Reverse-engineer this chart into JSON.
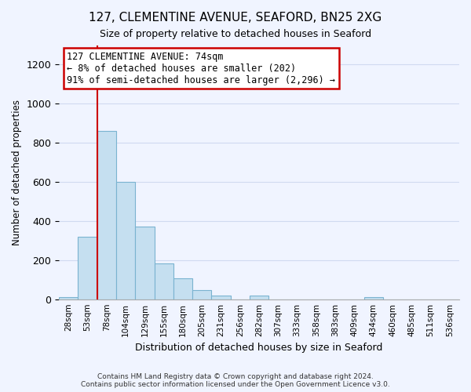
{
  "title": "127, CLEMENTINE AVENUE, SEAFORD, BN25 2XG",
  "subtitle": "Size of property relative to detached houses in Seaford",
  "xlabel": "Distribution of detached houses by size in Seaford",
  "ylabel": "Number of detached properties",
  "bar_color": "#c5dff0",
  "bar_edge_color": "#7ab3d0",
  "bin_labels": [
    "28sqm",
    "53sqm",
    "78sqm",
    "104sqm",
    "129sqm",
    "155sqm",
    "180sqm",
    "205sqm",
    "231sqm",
    "256sqm",
    "282sqm",
    "307sqm",
    "333sqm",
    "358sqm",
    "383sqm",
    "409sqm",
    "434sqm",
    "460sqm",
    "485sqm",
    "511sqm",
    "536sqm"
  ],
  "bar_heights": [
    10,
    320,
    860,
    600,
    370,
    185,
    105,
    45,
    20,
    0,
    20,
    0,
    0,
    0,
    0,
    0,
    10,
    0,
    0,
    0,
    0
  ],
  "ylim": [
    0,
    1300
  ],
  "yticks": [
    0,
    200,
    400,
    600,
    800,
    1000,
    1200
  ],
  "property_line_x": 2.0,
  "annotation_title": "127 CLEMENTINE AVENUE: 74sqm",
  "annotation_line1": "← 8% of detached houses are smaller (202)",
  "annotation_line2": "91% of semi-detached houses are larger (2,296) →",
  "annotation_box_color": "#ffffff",
  "annotation_box_edge_color": "#cc0000",
  "red_line_color": "#cc0000",
  "footnote1": "Contains HM Land Registry data © Crown copyright and database right 2024.",
  "footnote2": "Contains public sector information licensed under the Open Government Licence v3.0.",
  "background_color": "#f0f4ff",
  "grid_color": "#d0daf0"
}
